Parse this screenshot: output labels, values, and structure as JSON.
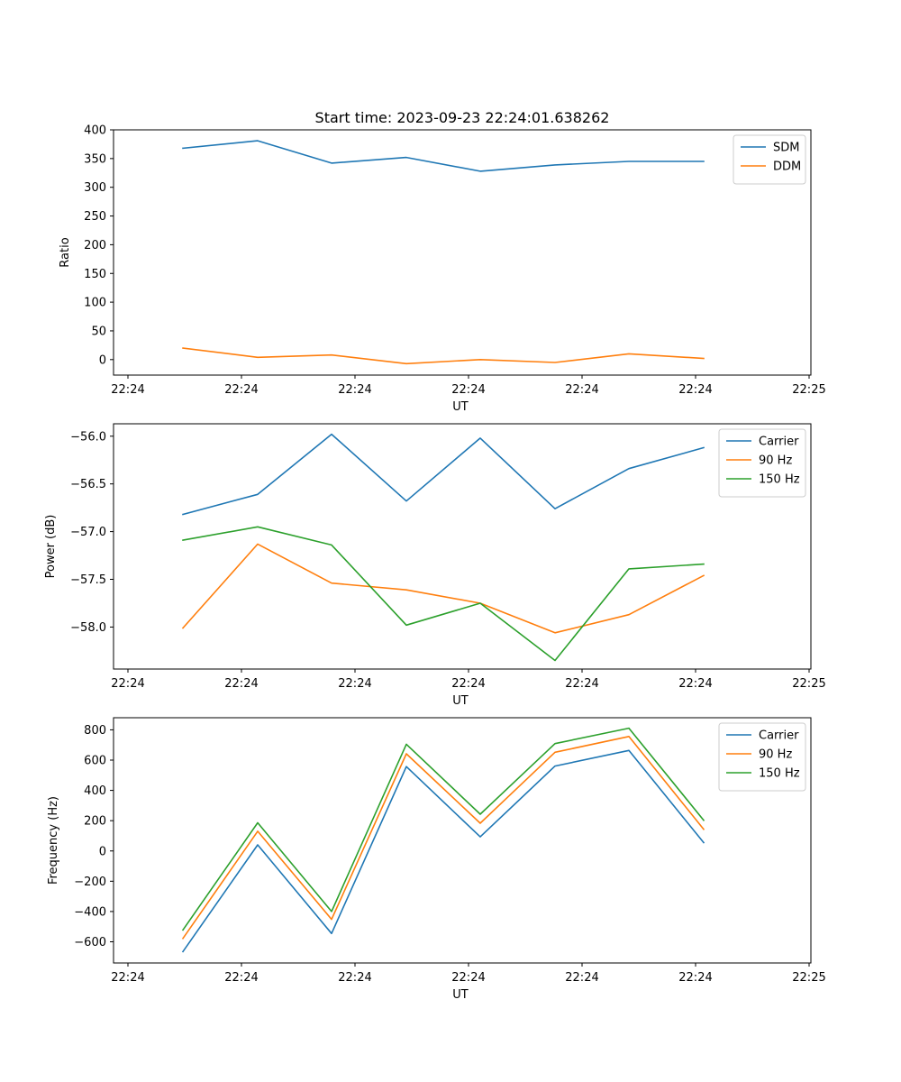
{
  "figure_title": "Start time: 2023-09-23 22:24:01.638262",
  "colors": {
    "blue": "#1f77b4",
    "orange": "#ff7f0e",
    "green": "#2ca02c"
  },
  "chart_data": [
    {
      "type": "line",
      "xlabel": "UT",
      "ylabel": "Ratio",
      "xtick_labels": [
        "22:24",
        "22:24",
        "22:24",
        "22:24",
        "22:24",
        "22:24",
        "22:25"
      ],
      "ylim": [
        -27,
        400
      ],
      "yticks": [
        0,
        50,
        100,
        150,
        200,
        250,
        300,
        350,
        400
      ],
      "ytick_labels": [
        "0",
        "50",
        "100",
        "150",
        "200",
        "250",
        "300",
        "350",
        "400"
      ],
      "legend_position": "top-right",
      "series": [
        {
          "name": "SDM",
          "color": "#1f77b4",
          "values": [
            368,
            381,
            342,
            352,
            328,
            339,
            345,
            345
          ]
        },
        {
          "name": "DDM",
          "color": "#ff7f0e",
          "values": [
            20,
            4,
            8,
            -7,
            0,
            -5,
            10,
            2
          ]
        }
      ]
    },
    {
      "type": "line",
      "xlabel": "UT",
      "ylabel": "Power (dB)",
      "xtick_labels": [
        "22:24",
        "22:24",
        "22:24",
        "22:24",
        "22:24",
        "22:24",
        "22:25"
      ],
      "ylim": [
        -58.44,
        -55.87
      ],
      "yticks": [
        -56.0,
        -56.5,
        -57.0,
        -57.5,
        -58.0
      ],
      "ytick_labels": [
        "−56.0",
        "−56.5",
        "−57.0",
        "−57.5",
        "−58.0"
      ],
      "legend_position": "top-right",
      "series": [
        {
          "name": "Carrier",
          "color": "#1f77b4",
          "values": [
            -56.82,
            -56.61,
            -55.98,
            -56.68,
            -56.02,
            -56.76,
            -56.34,
            -56.12
          ]
        },
        {
          "name": "90 Hz",
          "color": "#ff7f0e",
          "values": [
            -58.01,
            -57.13,
            -57.54,
            -57.61,
            -57.75,
            -58.06,
            -57.87,
            -57.46
          ]
        },
        {
          "name": "150 Hz",
          "color": "#2ca02c",
          "values": [
            -57.09,
            -56.95,
            -57.14,
            -57.98,
            -57.75,
            -58.35,
            -57.39,
            -57.34
          ]
        }
      ]
    },
    {
      "type": "line",
      "xlabel": "UT",
      "ylabel": "Frequency (Hz)",
      "xtick_labels": [
        "22:24",
        "22:24",
        "22:24",
        "22:24",
        "22:24",
        "22:24",
        "22:25"
      ],
      "ylim": [
        -740,
        880
      ],
      "yticks": [
        800,
        600,
        400,
        200,
        0,
        -200,
        -400,
        -600
      ],
      "ytick_labels": [
        "800",
        "600",
        "400",
        "200",
        "0",
        "−200",
        "−400",
        "−600"
      ],
      "legend_position": "top-right",
      "series": [
        {
          "name": "Carrier",
          "color": "#1f77b4",
          "values": [
            -665,
            40,
            -545,
            557,
            93,
            561,
            664,
            55
          ]
        },
        {
          "name": "90 Hz",
          "color": "#ff7f0e",
          "values": [
            -578,
            130,
            -452,
            642,
            183,
            652,
            756,
            143
          ]
        },
        {
          "name": "150 Hz",
          "color": "#2ca02c",
          "values": [
            -522,
            186,
            -400,
            705,
            243,
            709,
            811,
            203
          ]
        }
      ]
    }
  ]
}
